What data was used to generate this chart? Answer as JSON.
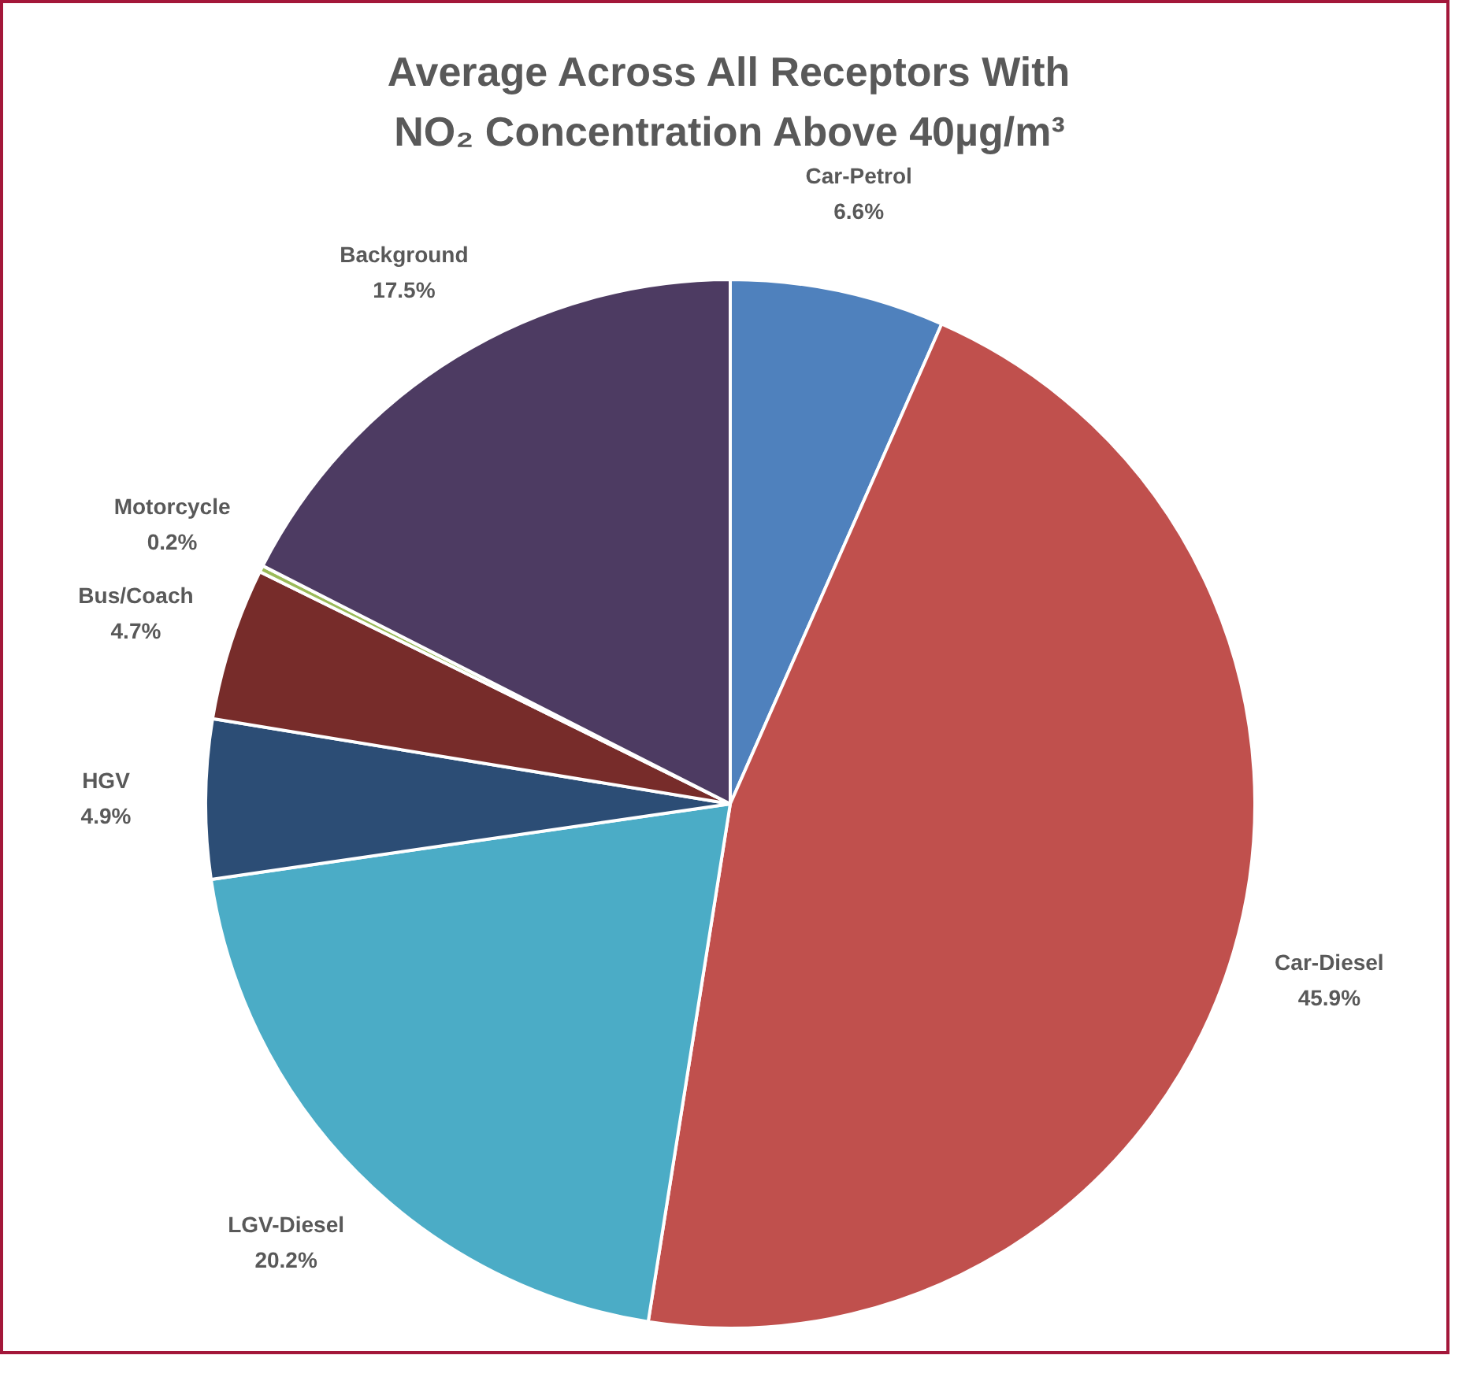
{
  "chart_data": {
    "type": "pie",
    "title": "Average Across All Receptors With\nNO₂ Concentration Above 40µg/m³",
    "categories": [
      "Car-Petrol",
      "Car-Diesel",
      "LGV-Diesel",
      "HGV",
      "Bus/Coach",
      "Motorcycle",
      "Background"
    ],
    "values": [
      6.6,
      45.9,
      20.2,
      4.9,
      4.7,
      0.2,
      17.5
    ],
    "colors": [
      "#4f81bd",
      "#c0504d",
      "#4bacc6",
      "#2c4d75",
      "#772c2a",
      "#9bbb59",
      "#4d3b62"
    ],
    "value_labels": [
      "6.6%",
      "45.9%",
      "20.2%",
      "4.9%",
      "4.7%",
      "0.2%",
      "17.5%"
    ]
  }
}
